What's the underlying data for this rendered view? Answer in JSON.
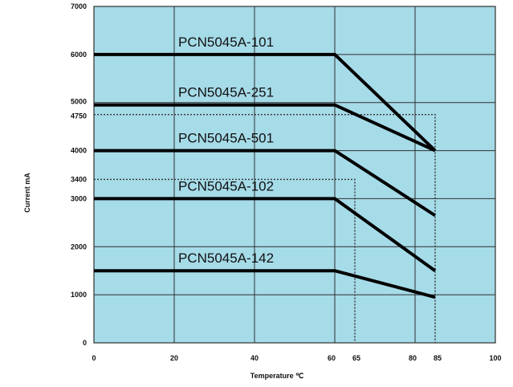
{
  "chart_data": {
    "type": "line",
    "title": "",
    "xlabel": "Temperature ℃",
    "ylabel": "Current mA",
    "xlim": [
      0,
      100
    ],
    "ylim": [
      0,
      7000
    ],
    "x_ticks": [
      {
        "value": 0,
        "label": "0"
      },
      {
        "value": 20,
        "label": "20"
      },
      {
        "value": 40,
        "label": "40"
      },
      {
        "value": 60,
        "label": "60"
      },
      {
        "value": 65,
        "label": "65"
      },
      {
        "value": 80,
        "label": "80"
      },
      {
        "value": 85,
        "label": "85"
      },
      {
        "value": 100,
        "label": "100"
      }
    ],
    "y_ticks": [
      {
        "value": 0,
        "label": "0"
      },
      {
        "value": 1000,
        "label": "1000"
      },
      {
        "value": 2000,
        "label": "2000"
      },
      {
        "value": 3000,
        "label": "3000"
      },
      {
        "value": 3400,
        "label": "3400"
      },
      {
        "value": 4000,
        "label": "4000"
      },
      {
        "value": 4750,
        "label": "4750"
      },
      {
        "value": 5000,
        "label": "5000"
      },
      {
        "value": 6000,
        "label": "6000"
      },
      {
        "value": 7000,
        "label": "7000"
      }
    ],
    "grid_x": [
      0,
      20,
      40,
      60,
      80,
      100
    ],
    "grid_y": [
      0,
      1000,
      2000,
      3000,
      4000,
      5000,
      6000,
      7000
    ],
    "grid": true,
    "series": [
      {
        "name": "PCN5045A-101",
        "x": [
          0,
          60,
          85
        ],
        "y": [
          6000,
          6000,
          4000
        ]
      },
      {
        "name": "PCN5045A-251",
        "x": [
          0,
          60,
          85
        ],
        "y": [
          4950,
          4950,
          4000
        ]
      },
      {
        "name": "PCN5045A-501",
        "x": [
          0,
          60,
          85
        ],
        "y": [
          4000,
          4000,
          2650
        ]
      },
      {
        "name": "PCN5045A-102",
        "x": [
          0,
          60,
          85
        ],
        "y": [
          3000,
          3000,
          1500
        ]
      },
      {
        "name": "PCN5045A-142",
        "x": [
          0,
          60,
          85
        ],
        "y": [
          1500,
          1500,
          950
        ]
      }
    ],
    "dashed_lines": [
      {
        "x": [
          0,
          85,
          85
        ],
        "y": [
          4750,
          4750,
          0
        ]
      },
      {
        "x": [
          0,
          65,
          65
        ],
        "y": [
          3400,
          3400,
          0
        ]
      }
    ],
    "colors": {
      "plot_background": "#a6dbe8",
      "grid": "#2f2f2f",
      "line": "#000000"
    }
  }
}
